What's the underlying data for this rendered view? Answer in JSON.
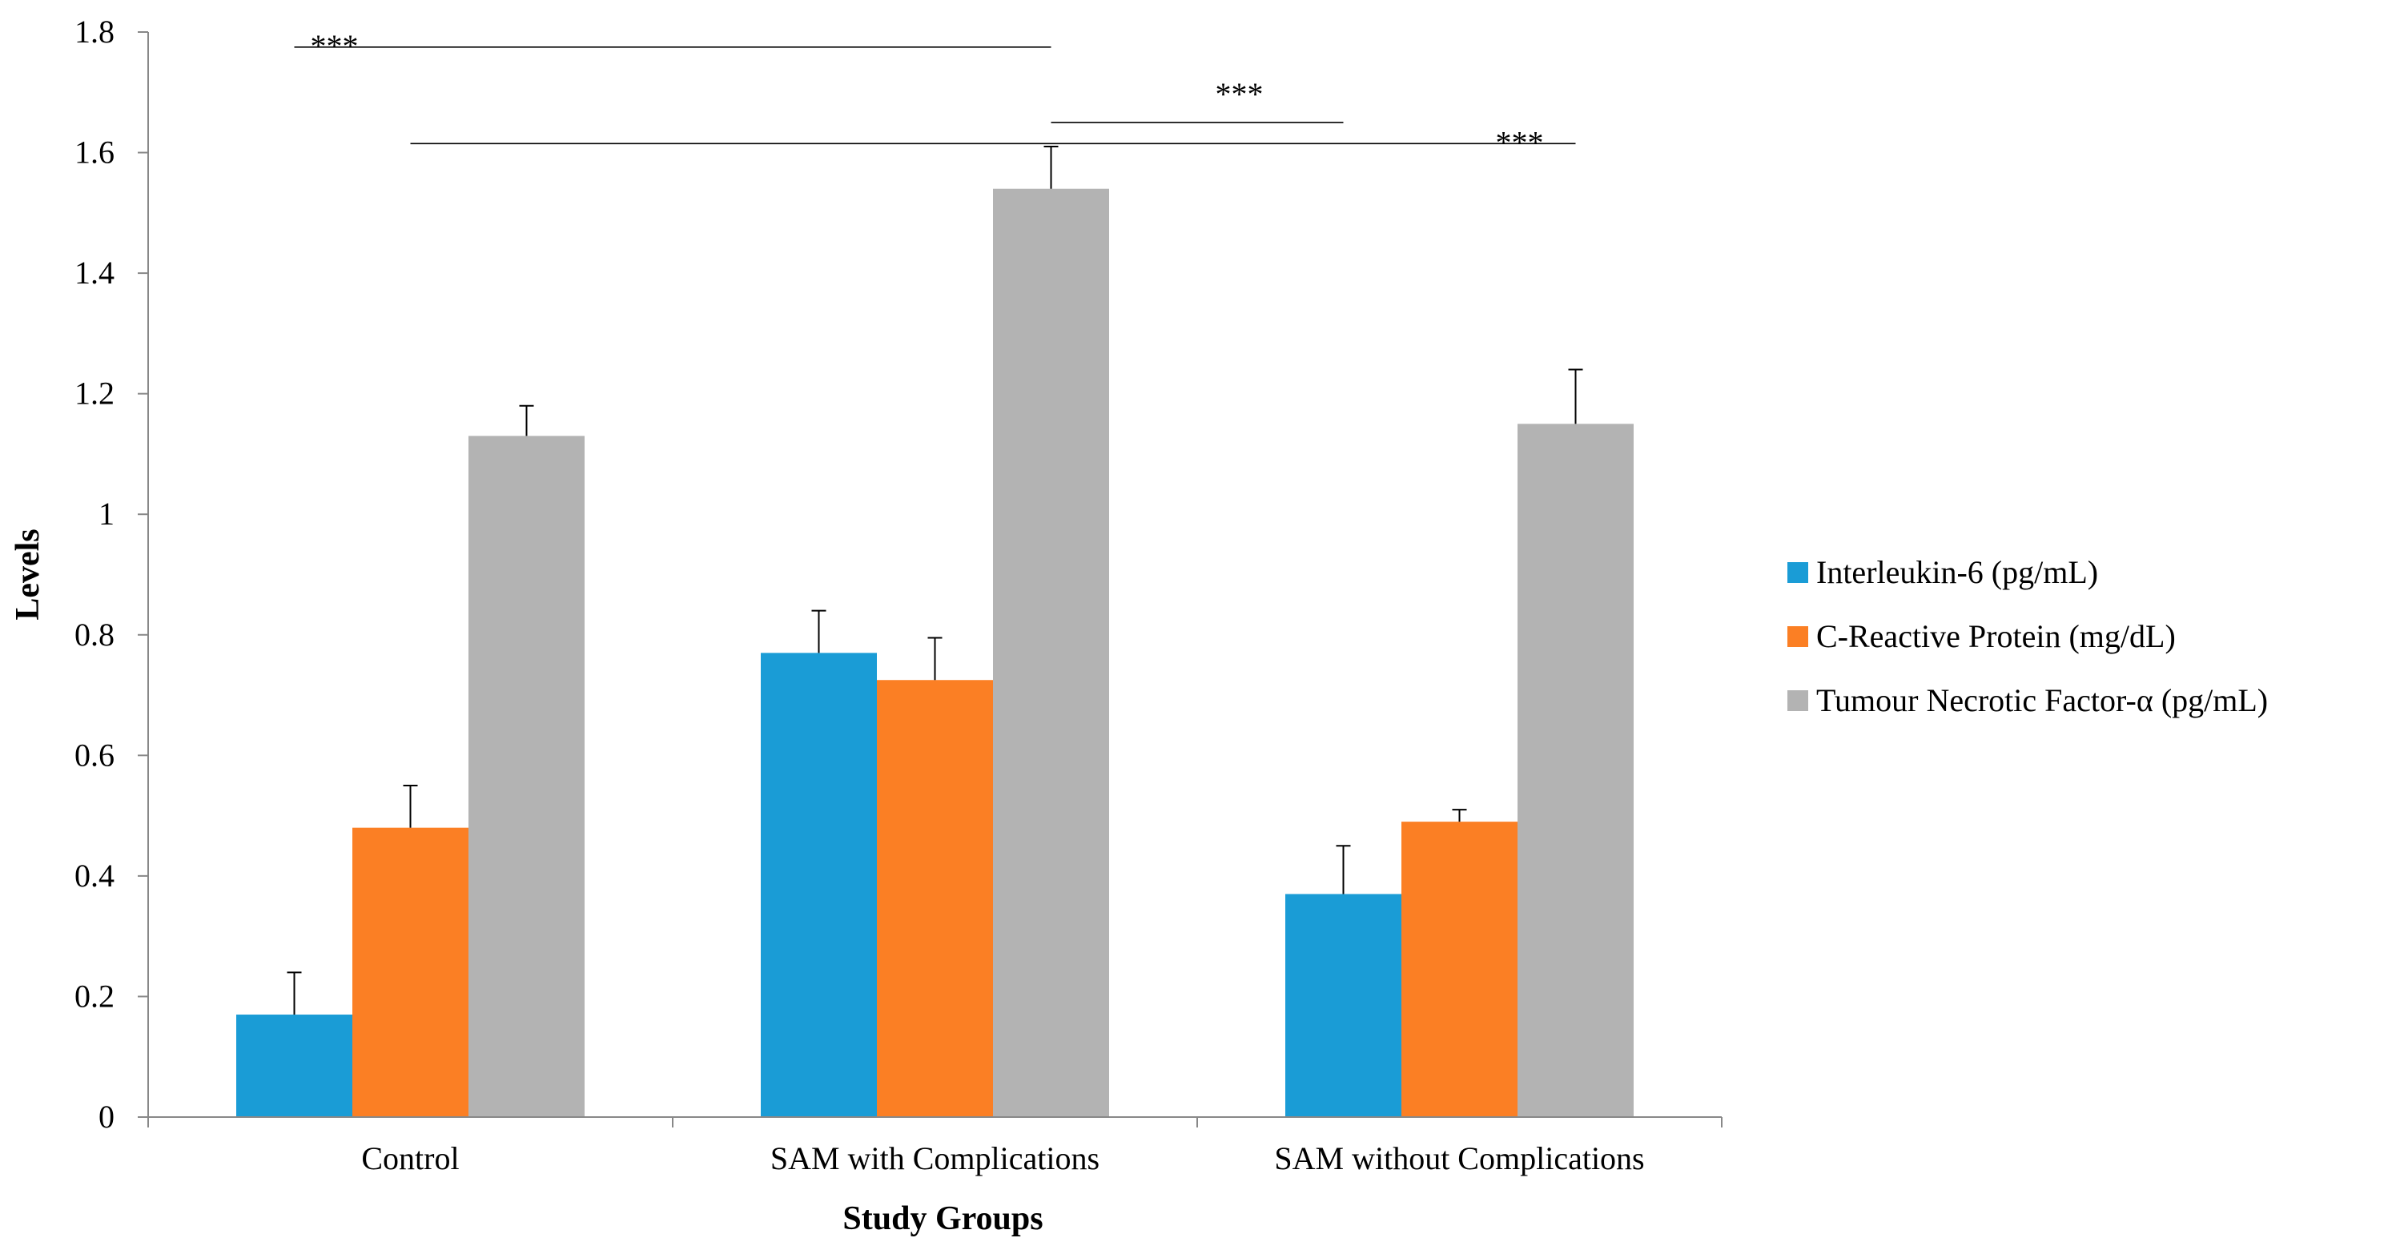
{
  "chart_data": {
    "type": "bar",
    "title": "",
    "xlabel": "Study Groups",
    "ylabel": "Levels",
    "ylim": [
      0,
      1.8
    ],
    "yticks": [
      0,
      0.2,
      0.4,
      0.6,
      0.8,
      1,
      1.2,
      1.4,
      1.6,
      1.8
    ],
    "ytick_labels": [
      "0",
      "0.2",
      "0.4",
      "0.6",
      "0.8",
      "1",
      "1.2",
      "1.4",
      "1.6",
      "1.8"
    ],
    "grid": false,
    "legend_position": "right",
    "categories": [
      "Control",
      "SAM with Complications",
      "SAM without Complications"
    ],
    "series": [
      {
        "name": "Interleukin-6 (pg/mL)",
        "color": "#1a9cd6",
        "values": [
          0.17,
          0.77,
          0.37
        ],
        "errors": [
          0.07,
          0.07,
          0.08
        ]
      },
      {
        "name": "C-Reactive Protein (mg/dL)",
        "color": "#fb7f24",
        "values": [
          0.48,
          0.725,
          0.49
        ],
        "errors": [
          0.07,
          0.07,
          0.02
        ]
      },
      {
        "name": "Tumour Necrotic Factor-α (pg/mL)",
        "color": "#b3b3b3",
        "values": [
          1.13,
          1.54,
          1.15
        ],
        "errors": [
          0.05,
          0.07,
          0.09
        ]
      }
    ],
    "significance": [
      {
        "label": "***",
        "from": {
          "category": 0,
          "series": 0
        },
        "to": {
          "category": 1,
          "series": 2
        },
        "y": 1.775
      },
      {
        "label": "***",
        "from": {
          "category": 1,
          "series": 2
        },
        "to": {
          "category": 2,
          "series": 0
        },
        "y": 1.65
      },
      {
        "label": "***",
        "from": {
          "category": 0,
          "series": 1
        },
        "to": {
          "category": 2,
          "series": 2
        },
        "y": 1.615
      }
    ]
  }
}
